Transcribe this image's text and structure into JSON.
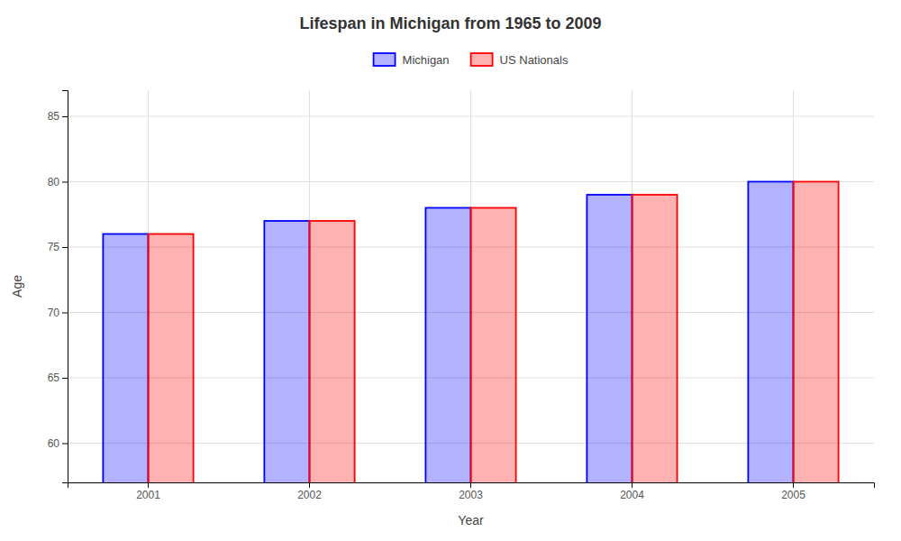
{
  "chart_data": {
    "type": "bar",
    "title": "Lifespan in Michigan from 1965 to 2009",
    "x_label": "Year",
    "y_label": "Age",
    "categories": [
      "2001",
      "2002",
      "2003",
      "2004",
      "2005"
    ],
    "series": [
      {
        "name": "Michigan",
        "color": "#0000ff",
        "values": [
          76,
          77,
          78,
          79,
          80
        ]
      },
      {
        "name": "US Nationals",
        "color": "#ff0000",
        "values": [
          76,
          77,
          78,
          79,
          80
        ]
      }
    ],
    "ylim": [
      57,
      87
    ],
    "yticks": [
      60,
      65,
      70,
      75,
      80,
      85
    ],
    "grid": true,
    "legend": "top"
  }
}
